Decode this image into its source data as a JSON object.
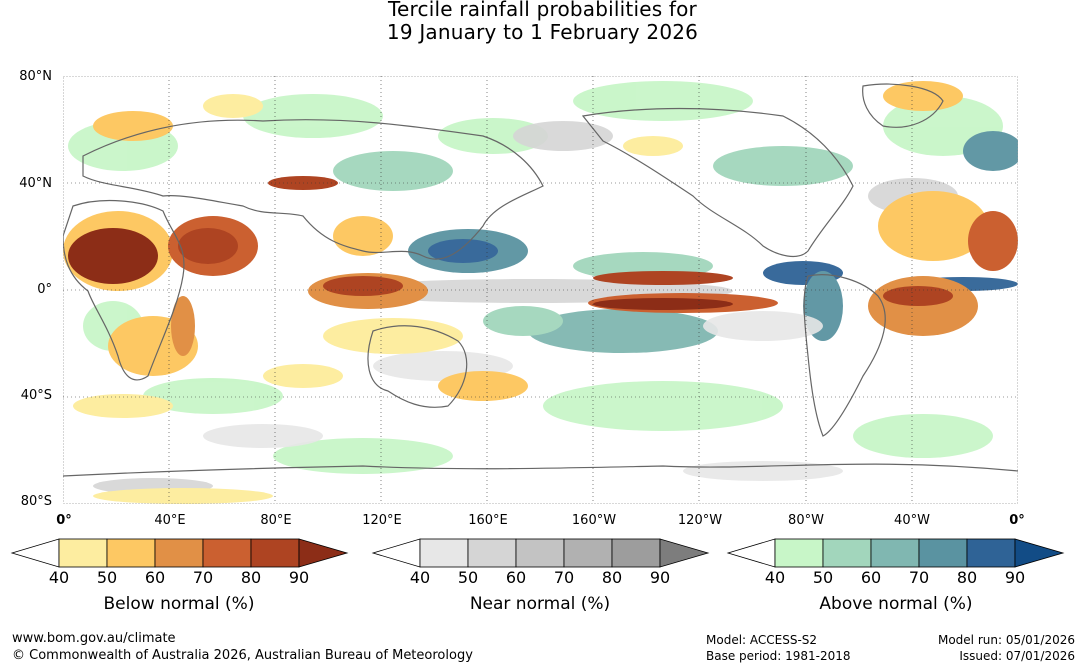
{
  "title_line1": "Tercile rainfall probabilities for",
  "title_line2": "19 January to 1 February 2026",
  "lat_labels": [
    "80°N",
    "40°N",
    "0°",
    "40°S",
    "80°S"
  ],
  "lon_labels": [
    "0°",
    "40°E",
    "80°E",
    "120°E",
    "160°E",
    "160°W",
    "120°W",
    "80°W",
    "40°W",
    "0°"
  ],
  "legends": {
    "below": {
      "title": "Below normal (%)",
      "ticks": [
        "40",
        "50",
        "60",
        "70",
        "80",
        "90"
      ],
      "colors": [
        "#ffffff",
        "#fdeda0",
        "#fdc863",
        "#e19046",
        "#cb6030",
        "#ae4422",
        "#8c2d17"
      ]
    },
    "near": {
      "title": "Near normal (%)",
      "ticks": [
        "40",
        "50",
        "60",
        "70",
        "80",
        "90"
      ],
      "colors": [
        "#ffffff",
        "#e7e7e7",
        "#d5d5d5",
        "#c3c3c3",
        "#b1b1b1",
        "#9d9d9d",
        "#7d7d7d"
      ]
    },
    "above": {
      "title": "Above normal (%)",
      "ticks": [
        "40",
        "50",
        "60",
        "70",
        "80",
        "90"
      ],
      "colors": [
        "#ffffff",
        "#c8f6c8",
        "#a2d6bc",
        "#80b7b1",
        "#5a93a1",
        "#2f6396",
        "#124c86"
      ]
    }
  },
  "footer": {
    "website": "www.bom.gov.au/climate",
    "copyright": "© Commonwealth of Australia 2026, Australian Bureau of Meteorology",
    "model": "Model: ACCESS-S2",
    "base_period": "Base period: 1981-2018",
    "model_run": "Model run: 05/01/2026",
    "issued": "Issued: 07/01/2026"
  }
}
